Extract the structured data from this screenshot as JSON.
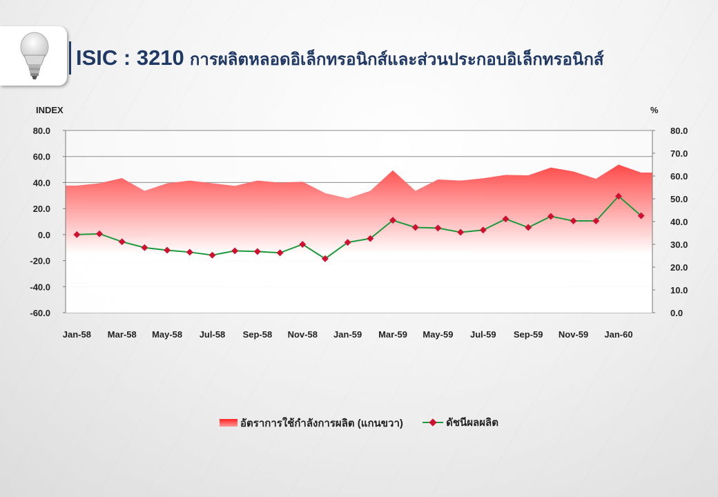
{
  "header": {
    "code": "ISIC : 3210",
    "description": "การผลิตหลอดอิเล็กทรอนิกส์และส่วนประกอบอิเล็กทรอนิกส์",
    "icon": "light-bulb-icon"
  },
  "chart_data": {
    "type": "line+area",
    "left_axis_label": "INDEX",
    "right_axis_label": "%",
    "left_ylim": [
      -60,
      80
    ],
    "left_ticks": [
      "80.0",
      "60.0",
      "40.0",
      "20.0",
      "0.0",
      "-20.0",
      "-40.0",
      "-60.0"
    ],
    "right_ylim": [
      0,
      80
    ],
    "right_ticks": [
      "80.0",
      "70.0",
      "60.0",
      "50.0",
      "40.0",
      "30.0",
      "20.0",
      "10.0",
      "0.0"
    ],
    "x_tick_labels": [
      "Jan-58",
      "Mar-58",
      "May-58",
      "Jul-58",
      "Sep-58",
      "Nov-58",
      "Jan-59",
      "Mar-59",
      "May-59",
      "Jul-59",
      "Sep-59",
      "Nov-59",
      "Jan-60"
    ],
    "x": [
      "Jan-58",
      "Feb-58",
      "Mar-58",
      "Apr-58",
      "May-58",
      "Jun-58",
      "Jul-58",
      "Aug-58",
      "Sep-58",
      "Oct-58",
      "Nov-58",
      "Dec-58",
      "Jan-59",
      "Feb-59",
      "Mar-59",
      "Apr-59",
      "May-59",
      "Jun-59",
      "Jul-59",
      "Aug-59",
      "Sep-59",
      "Oct-59",
      "Nov-59",
      "Dec-59",
      "Jan-60",
      "Feb-60"
    ],
    "grid": true,
    "legend_position": "bottom",
    "series": [
      {
        "name": "อัตราการใช้กำลังการผลิต (แกนขวา)",
        "kind": "area",
        "axis": "right",
        "color": "#ff1a1a",
        "values": [
          55.8,
          56.8,
          59.1,
          53.5,
          56.8,
          58.0,
          56.8,
          55.7,
          58.0,
          57.1,
          57.5,
          52.5,
          50.2,
          53.5,
          62.5,
          53.5,
          58.5,
          58.0,
          59.0,
          60.5,
          60.3,
          63.7,
          62.0,
          58.8,
          65.0,
          61.5
        ]
      },
      {
        "name": "ดัชนีผลผลิต",
        "kind": "line",
        "axis": "left",
        "color": "#1a9a3a",
        "marker_color": "#d01030",
        "values": [
          0.0,
          0.6,
          -5.5,
          -10.0,
          -12.0,
          -13.5,
          -15.8,
          -12.5,
          -13.0,
          -14.0,
          -7.5,
          -18.5,
          -6.0,
          -3.0,
          11.0,
          5.5,
          5.0,
          1.8,
          3.5,
          12.0,
          5.5,
          14.0,
          10.5,
          10.5,
          29.5,
          14.5
        ]
      }
    ]
  }
}
